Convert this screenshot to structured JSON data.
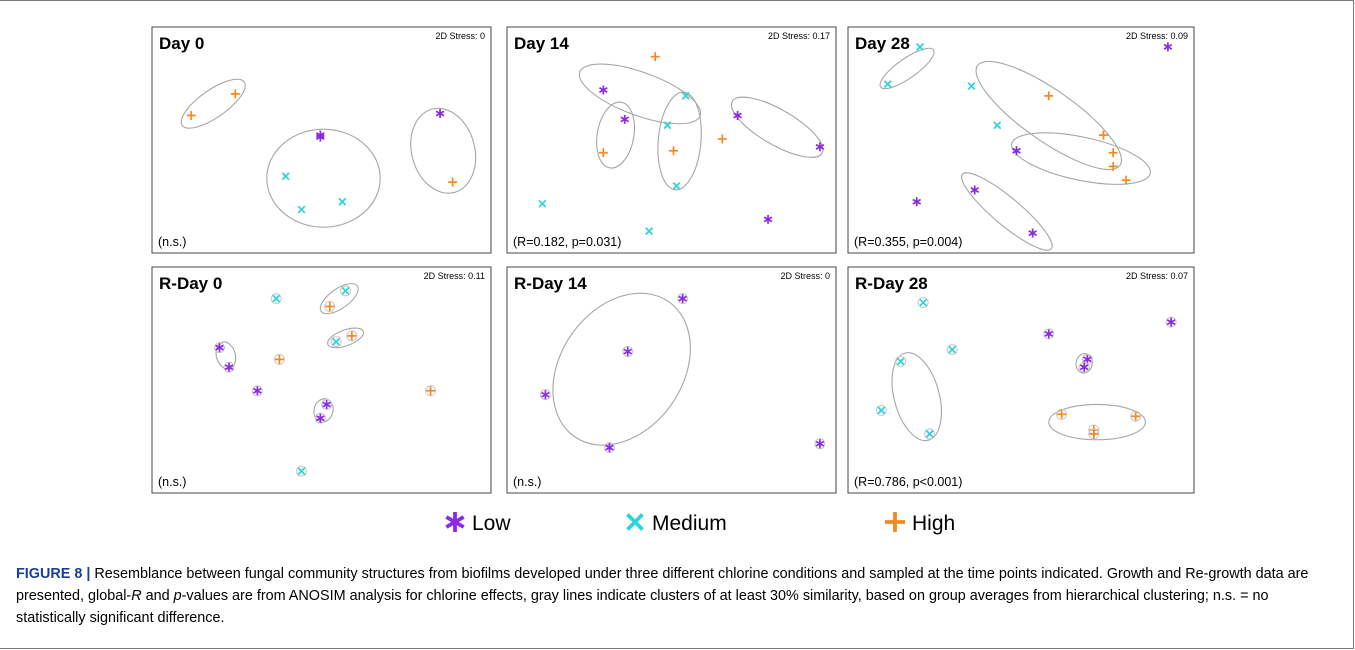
{
  "legend": [
    {
      "name": "Low",
      "color": "#8a2be2",
      "marker": "asterisk-icon"
    },
    {
      "name": "Medium",
      "color": "#2cd3d8",
      "marker": "cross-icon"
    },
    {
      "name": "High",
      "color": "#f5881f",
      "marker": "plus-icon"
    }
  ],
  "caption": {
    "figure_label": "FIGURE 8 |",
    "text_1": " Resemblance between fungal community structures from biofilms developed under three different chlorine conditions and sampled at the time points indicated. Growth and Re-growth data are presented, global-",
    "r_italic": "R",
    "text_2": " and ",
    "p_italic": "p",
    "text_3": "-values are from ANOSIM analysis for chlorine effects, gray lines indicate clusters of at least 30% similarity, based on group averages from hierarchical clustering; n.s. = no statistically significant difference."
  },
  "chart_data": [
    {
      "type": "scatter",
      "title": "Day 0",
      "stress": "2D Stress: 0",
      "stat": "(n.s.)",
      "xlim": [
        0,
        100
      ],
      "ylim": [
        0,
        100
      ],
      "points": [
        {
          "group": "High",
          "x": 22,
          "y": 73
        },
        {
          "group": "High",
          "x": 8,
          "y": 62
        },
        {
          "group": "Low",
          "x": 49,
          "y": 52
        },
        {
          "group": "Low",
          "x": 49,
          "y": 51
        },
        {
          "group": "Low",
          "x": 87,
          "y": 63
        },
        {
          "group": "Medium",
          "x": 38,
          "y": 31
        },
        {
          "group": "Medium",
          "x": 43,
          "y": 14
        },
        {
          "group": "Medium",
          "x": 56,
          "y": 18
        },
        {
          "group": "High",
          "x": 91,
          "y": 28
        }
      ],
      "clusters": [
        {
          "cx": 15,
          "cy": 68,
          "rx": 12,
          "ry": 7,
          "angle": -35
        },
        {
          "cx": 50,
          "cy": 30,
          "rx": 18,
          "ry": 25,
          "angle": 0
        },
        {
          "cx": 88,
          "cy": 44,
          "rx": 10,
          "ry": 22,
          "angle": -15
        }
      ]
    },
    {
      "type": "scatter",
      "title": "Day 14",
      "stress": "2D Stress: 0.17",
      "stat": "(R=0.182, p=0.031)",
      "xlim": [
        0,
        100
      ],
      "ylim": [
        0,
        100
      ],
      "points": [
        {
          "group": "High",
          "x": 44,
          "y": 92
        },
        {
          "group": "Low",
          "x": 27,
          "y": 75
        },
        {
          "group": "Low",
          "x": 34,
          "y": 60
        },
        {
          "group": "Medium",
          "x": 48,
          "y": 57
        },
        {
          "group": "Medium",
          "x": 54,
          "y": 72
        },
        {
          "group": "High",
          "x": 27,
          "y": 43
        },
        {
          "group": "High",
          "x": 50,
          "y": 44
        },
        {
          "group": "High",
          "x": 66,
          "y": 50
        },
        {
          "group": "Low",
          "x": 71,
          "y": 62
        },
        {
          "group": "Low",
          "x": 98,
          "y": 46
        },
        {
          "group": "Medium",
          "x": 51,
          "y": 26
        },
        {
          "group": "Medium",
          "x": 7,
          "y": 17
        },
        {
          "group": "Medium",
          "x": 42,
          "y": 3
        },
        {
          "group": "Low",
          "x": 81,
          "y": 9
        }
      ],
      "clusters": [
        {
          "cx": 39,
          "cy": 73,
          "rx": 21,
          "ry": 11,
          "angle": 20
        },
        {
          "cx": 31,
          "cy": 52,
          "rx": 6,
          "ry": 17,
          "angle": 10
        },
        {
          "cx": 52,
          "cy": 49,
          "rx": 7,
          "ry": 25,
          "angle": 5
        },
        {
          "cx": 84,
          "cy": 56,
          "rx": 17,
          "ry": 9,
          "angle": 30
        }
      ]
    },
    {
      "type": "scatter",
      "title": "Day 28",
      "stress": "2D Stress: 0.09",
      "stat": "(R=0.355, p=0.004)",
      "xlim": [
        0,
        100
      ],
      "ylim": [
        0,
        100
      ],
      "points": [
        {
          "group": "Medium",
          "x": 18,
          "y": 97
        },
        {
          "group": "Medium",
          "x": 8,
          "y": 78
        },
        {
          "group": "Low",
          "x": 95,
          "y": 97
        },
        {
          "group": "Medium",
          "x": 34,
          "y": 77
        },
        {
          "group": "High",
          "x": 58,
          "y": 72
        },
        {
          "group": "Medium",
          "x": 42,
          "y": 57
        },
        {
          "group": "High",
          "x": 75,
          "y": 52
        },
        {
          "group": "Low",
          "x": 48,
          "y": 44
        },
        {
          "group": "High",
          "x": 78,
          "y": 43
        },
        {
          "group": "High",
          "x": 78,
          "y": 36
        },
        {
          "group": "High",
          "x": 82,
          "y": 29
        },
        {
          "group": "Low",
          "x": 35,
          "y": 24
        },
        {
          "group": "Low",
          "x": 17,
          "y": 18
        },
        {
          "group": "Low",
          "x": 53,
          "y": 2
        }
      ],
      "clusters": [
        {
          "cx": 14,
          "cy": 86,
          "rx": 10,
          "ry": 5,
          "angle": -35
        },
        {
          "cx": 58,
          "cy": 62,
          "rx": 27,
          "ry": 13,
          "angle": 35
        },
        {
          "cx": 68,
          "cy": 40,
          "rx": 22,
          "ry": 11,
          "angle": 12
        },
        {
          "cx": 45,
          "cy": 13,
          "rx": 18,
          "ry": 7,
          "angle": 40
        }
      ]
    },
    {
      "type": "scatter",
      "title": "R-Day 0",
      "stress": "2D Stress: 0.11",
      "stat": "(n.s.)",
      "xlim": [
        0,
        100
      ],
      "ylim": [
        0,
        100
      ],
      "points": [
        {
          "group": "Medium",
          "x": 35,
          "y": 91
        },
        {
          "group": "Medium",
          "x": 57,
          "y": 95
        },
        {
          "group": "High",
          "x": 52,
          "y": 87
        },
        {
          "group": "Medium",
          "x": 54,
          "y": 69
        },
        {
          "group": "High",
          "x": 59,
          "y": 72
        },
        {
          "group": "Low",
          "x": 17,
          "y": 66
        },
        {
          "group": "Low",
          "x": 20,
          "y": 56
        },
        {
          "group": "High",
          "x": 36,
          "y": 60
        },
        {
          "group": "Low",
          "x": 29,
          "y": 44
        },
        {
          "group": "Low",
          "x": 51,
          "y": 37
        },
        {
          "group": "Low",
          "x": 49,
          "y": 30
        },
        {
          "group": "High",
          "x": 84,
          "y": 44
        },
        {
          "group": "Medium",
          "x": 43,
          "y": 3
        }
      ],
      "clusters": [
        {
          "cx": 55,
          "cy": 91,
          "rx": 7,
          "ry": 5,
          "angle": -35
        },
        {
          "cx": 57,
          "cy": 71,
          "rx": 6,
          "ry": 4,
          "angle": -20
        },
        {
          "cx": 19,
          "cy": 62,
          "rx": 3,
          "ry": 7,
          "angle": -15
        },
        {
          "cx": 50,
          "cy": 34,
          "rx": 3,
          "ry": 6,
          "angle": 15
        }
      ]
    },
    {
      "type": "scatter",
      "title": "R-Day 14",
      "stress": "2D Stress: 0",
      "stat": "(n.s.)",
      "xlim": [
        0,
        100
      ],
      "ylim": [
        0,
        100
      ],
      "points": [
        {
          "group": "Low",
          "x": 53,
          "y": 91
        },
        {
          "group": "Low",
          "x": 35,
          "y": 64
        },
        {
          "group": "Low",
          "x": 8,
          "y": 42
        },
        {
          "group": "Low",
          "x": 29,
          "y": 15
        },
        {
          "group": "Low",
          "x": 98,
          "y": 17
        }
      ],
      "clusters": [
        {
          "cx": 33,
          "cy": 55,
          "rx": 20,
          "ry": 42,
          "angle": 35
        }
      ]
    },
    {
      "type": "scatter",
      "title": "R-Day 28",
      "stress": "2D Stress: 0.07",
      "stat": "(R=0.786, p<0.001)",
      "xlim": [
        0,
        100
      ],
      "ylim": [
        0,
        100
      ],
      "points": [
        {
          "group": "Medium",
          "x": 19,
          "y": 89
        },
        {
          "group": "Low",
          "x": 96,
          "y": 79
        },
        {
          "group": "Low",
          "x": 58,
          "y": 73
        },
        {
          "group": "Medium",
          "x": 28,
          "y": 65
        },
        {
          "group": "Medium",
          "x": 12,
          "y": 59
        },
        {
          "group": "Low",
          "x": 70,
          "y": 60
        },
        {
          "group": "Low",
          "x": 69,
          "y": 56
        },
        {
          "group": "Medium",
          "x": 6,
          "y": 34
        },
        {
          "group": "Medium",
          "x": 21,
          "y": 22
        },
        {
          "group": "High",
          "x": 62,
          "y": 32
        },
        {
          "group": "High",
          "x": 85,
          "y": 31
        },
        {
          "group": "High",
          "x": 72,
          "y": 24
        },
        {
          "group": "High",
          "x": 72,
          "y": 22
        }
      ],
      "clusters": [
        {
          "cx": 17,
          "cy": 41,
          "rx": 7,
          "ry": 23,
          "angle": -15
        },
        {
          "cx": 69,
          "cy": 58,
          "rx": 2.5,
          "ry": 5,
          "angle": 10
        },
        {
          "cx": 73,
          "cy": 28,
          "rx": 15,
          "ry": 9,
          "angle": 0
        }
      ]
    }
  ]
}
